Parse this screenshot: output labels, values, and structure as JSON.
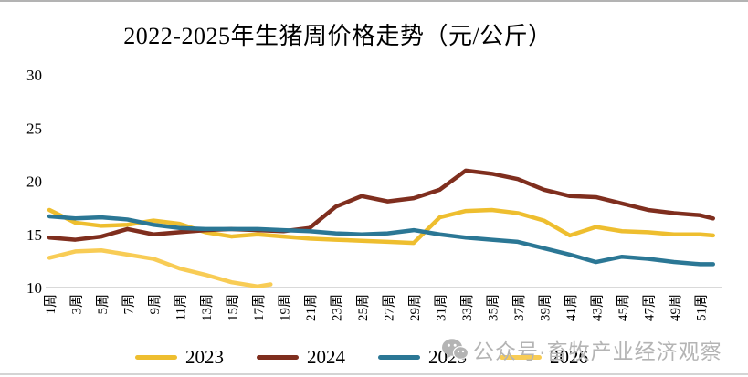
{
  "page": {
    "title": "2022-2025年生猪周价格走势（元/公斤）"
  },
  "watermark": {
    "icon": "wechat-icon",
    "text": "公众号·畜牧产业经济观察"
  },
  "colors": {
    "axis_line": "#d9d9d9",
    "tick_text": "#000000",
    "series_2023": "#eebe2f",
    "series_2024": "#7f2e1e",
    "series_2025": "#2b7795",
    "series_2026": "#f8cc55",
    "watermark_gray": "#b4b4b4"
  },
  "chart_data": {
    "type": "line",
    "title": "2022-2025年生猪周价格走势（元/公斤）",
    "unit": "元/公斤",
    "xlabel": "",
    "ylabel": "",
    "ylim": [
      10,
      30
    ],
    "y_ticks": [
      30,
      25,
      20,
      15,
      10
    ],
    "grid": false,
    "legend_position": "bottom",
    "x_tick_weeks": [
      1,
      3,
      5,
      7,
      9,
      11,
      13,
      15,
      17,
      19,
      21,
      23,
      25,
      27,
      29,
      31,
      33,
      35,
      37,
      39,
      41,
      43,
      45,
      47,
      49,
      51
    ],
    "x_tick_labels": [
      "1周",
      "3周",
      "5周",
      "7周",
      "9周",
      "11周",
      "13周",
      "15周",
      "17周",
      "19周",
      "21周",
      "23周",
      "25周",
      "27周",
      "29周",
      "31周",
      "33周",
      "35周",
      "37周",
      "39周",
      "41周",
      "43周",
      "45周",
      "47周",
      "49周",
      "51周"
    ],
    "series": [
      {
        "name": "2023",
        "color": "#eebe2f",
        "weeks": [
          1,
          3,
          5,
          7,
          9,
          11,
          13,
          15,
          17,
          19,
          21,
          23,
          25,
          27,
          29,
          31,
          33,
          35,
          37,
          39,
          41,
          43,
          45,
          47,
          49,
          51,
          52
        ],
        "values": [
          17.3,
          16.1,
          15.8,
          15.9,
          16.3,
          16.0,
          15.2,
          14.8,
          15.0,
          14.8,
          14.6,
          14.5,
          14.4,
          14.3,
          14.2,
          16.6,
          17.2,
          17.3,
          17.0,
          16.3,
          14.9,
          15.7,
          15.3,
          15.2,
          15.0,
          15.0,
          14.9
        ]
      },
      {
        "name": "2024",
        "color": "#7f2e1e",
        "weeks": [
          1,
          3,
          5,
          7,
          9,
          11,
          13,
          15,
          17,
          19,
          21,
          23,
          25,
          27,
          29,
          31,
          33,
          35,
          37,
          39,
          41,
          43,
          45,
          47,
          49,
          51,
          52
        ],
        "values": [
          14.7,
          14.5,
          14.8,
          15.5,
          15.0,
          15.2,
          15.4,
          15.5,
          15.4,
          15.3,
          15.6,
          17.6,
          18.6,
          18.1,
          18.4,
          19.2,
          21.0,
          20.7,
          20.2,
          19.2,
          18.6,
          18.5,
          17.9,
          17.3,
          17.0,
          16.8,
          16.5
        ]
      },
      {
        "name": "2025",
        "color": "#2b7795",
        "weeks": [
          1,
          3,
          5,
          7,
          9,
          11,
          13,
          15,
          17,
          19,
          21,
          23,
          25,
          27,
          29,
          31,
          33,
          35,
          37,
          39,
          41,
          43,
          45,
          47,
          49,
          51,
          52
        ],
        "values": [
          16.7,
          16.5,
          16.6,
          16.4,
          15.9,
          15.6,
          15.5,
          15.5,
          15.5,
          15.4,
          15.3,
          15.1,
          15.0,
          15.1,
          15.4,
          15.0,
          14.7,
          14.5,
          14.3,
          13.7,
          13.1,
          12.4,
          12.9,
          12.7,
          12.4,
          12.2,
          12.2
        ]
      },
      {
        "name": "2026",
        "color": "#f8cc55",
        "weeks": [
          1,
          3,
          5,
          7,
          9,
          11,
          13,
          15,
          17,
          18
        ],
        "values": [
          12.8,
          13.4,
          13.5,
          13.1,
          12.7,
          11.8,
          11.2,
          10.5,
          10.1,
          10.3
        ]
      }
    ]
  }
}
